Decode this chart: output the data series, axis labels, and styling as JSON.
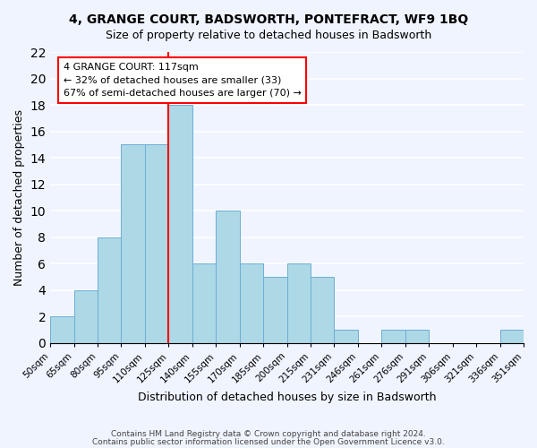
{
  "title": "4, GRANGE COURT, BADSWORTH, PONTEFRACT, WF9 1BQ",
  "subtitle": "Size of property relative to detached houses in Badsworth",
  "xlabel": "Distribution of detached houses by size in Badsworth",
  "ylabel": "Number of detached properties",
  "bin_labels": [
    "50sqm",
    "65sqm",
    "80sqm",
    "95sqm",
    "110sqm",
    "125sqm",
    "140sqm",
    "155sqm",
    "170sqm",
    "185sqm",
    "200sqm",
    "215sqm",
    "231sqm",
    "246sqm",
    "261sqm",
    "276sqm",
    "291sqm",
    "306sqm",
    "321sqm",
    "336sqm",
    "351sqm"
  ],
  "bar_values": [
    2,
    4,
    8,
    15,
    15,
    18,
    6,
    10,
    6,
    5,
    6,
    5,
    1,
    0,
    1,
    1,
    0,
    0,
    0,
    1
  ],
  "bar_color": "#add8e6",
  "bar_edge_color": "#6baed6",
  "vline_x": 5.0,
  "vline_color": "red",
  "annotation_title": "4 GRANGE COURT: 117sqm",
  "annotation_line1": "← 32% of detached houses are smaller (33)",
  "annotation_line2": "67% of semi-detached houses are larger (70) →",
  "annotation_box_color": "white",
  "annotation_box_edge": "red",
  "ylim": [
    0,
    22
  ],
  "yticks": [
    0,
    2,
    4,
    6,
    8,
    10,
    12,
    14,
    16,
    18,
    20,
    22
  ],
  "footer1": "Contains HM Land Registry data © Crown copyright and database right 2024.",
  "footer2": "Contains public sector information licensed under the Open Government Licence v3.0.",
  "bg_color": "#f0f4ff"
}
